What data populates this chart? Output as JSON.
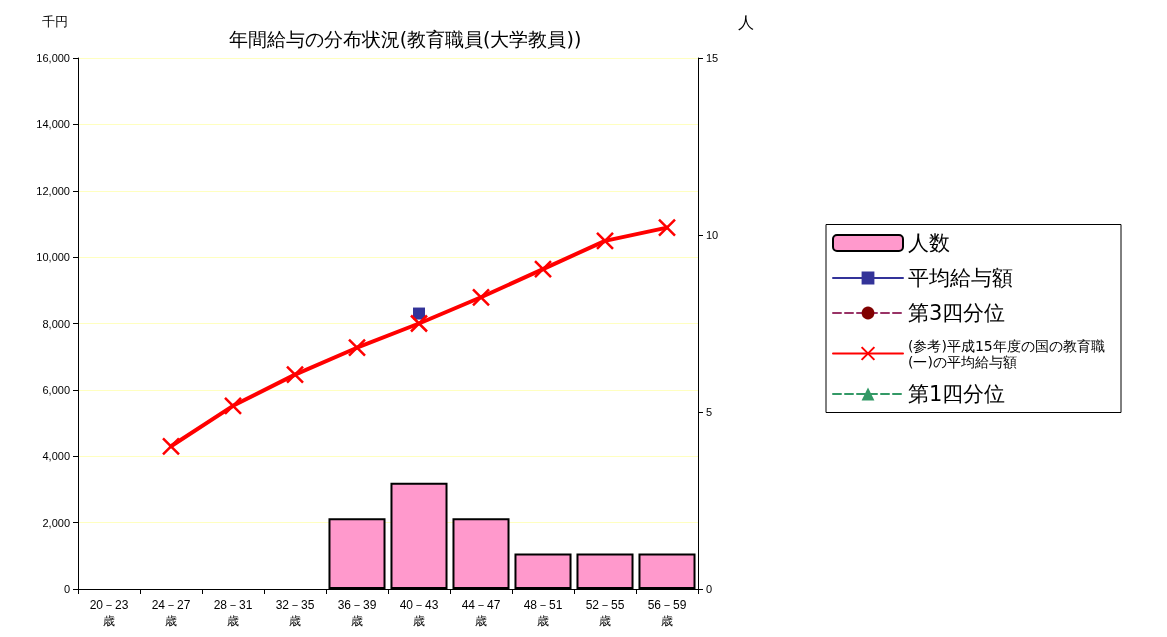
{
  "chart_data": {
    "type": "bar",
    "title": "年間給与の分布状況(教育職員(大学教員))",
    "ylabel": "千円",
    "y2label": "人",
    "categories": [
      "20－23\n歳",
      "24－27\n歳",
      "28－31\n歳",
      "32－35\n歳",
      "36－39\n歳",
      "40－43\n歳",
      "44－47\n歳",
      "48－51\n歳",
      "52－55\n歳",
      "56－59\n歳"
    ],
    "series": [
      {
        "name": "人数",
        "axis": "y2",
        "color": "#ff99cc",
        "values": [
          null,
          null,
          null,
          null,
          2,
          3,
          2,
          1,
          1,
          1
        ]
      },
      {
        "name": "平均給与額",
        "type": "line",
        "color": "#333399",
        "marker": "square",
        "line_style": "solid",
        "values": [
          null,
          null,
          null,
          null,
          null,
          8300,
          null,
          null,
          null,
          null
        ]
      },
      {
        "name": "第3四分位",
        "type": "line",
        "color": "#993366",
        "marker": "circle",
        "line_style": "dashed",
        "values": [
          null,
          null,
          null,
          null,
          null,
          null,
          null,
          null,
          null,
          null
        ]
      },
      {
        "name": "(参考)平成15年度の国の教育職(一)の平均給与額",
        "type": "line",
        "color": "#ff0000",
        "marker": "cross",
        "line_style": "solid",
        "values": [
          null,
          4300,
          5520,
          6460,
          7270,
          8000,
          8790,
          9640,
          10490,
          10890
        ]
      },
      {
        "name": "第1四分位",
        "type": "line",
        "color": "#339966",
        "marker": "triangle",
        "line_style": "dashed",
        "values": [
          null,
          null,
          null,
          null,
          null,
          null,
          null,
          null,
          null,
          null
        ]
      }
    ],
    "ylim": [
      0,
      16000
    ],
    "yticks": [
      {
        "value": 0,
        "label": "0"
      },
      {
        "value": 2000,
        "label": "2,000"
      },
      {
        "value": 4000,
        "label": "4,000"
      },
      {
        "value": 6000,
        "label": "6,000"
      },
      {
        "value": 8000,
        "label": "8,000"
      },
      {
        "value": 10000,
        "label": "10,000"
      },
      {
        "value": 12000,
        "label": "12,000"
      },
      {
        "value": 14000,
        "label": "14,000"
      },
      {
        "value": 16000,
        "label": "16,000"
      }
    ],
    "y2lim": [
      0,
      15
    ],
    "y2ticks": [
      0,
      5,
      10,
      15
    ],
    "grid": "y",
    "legend": "right"
  }
}
